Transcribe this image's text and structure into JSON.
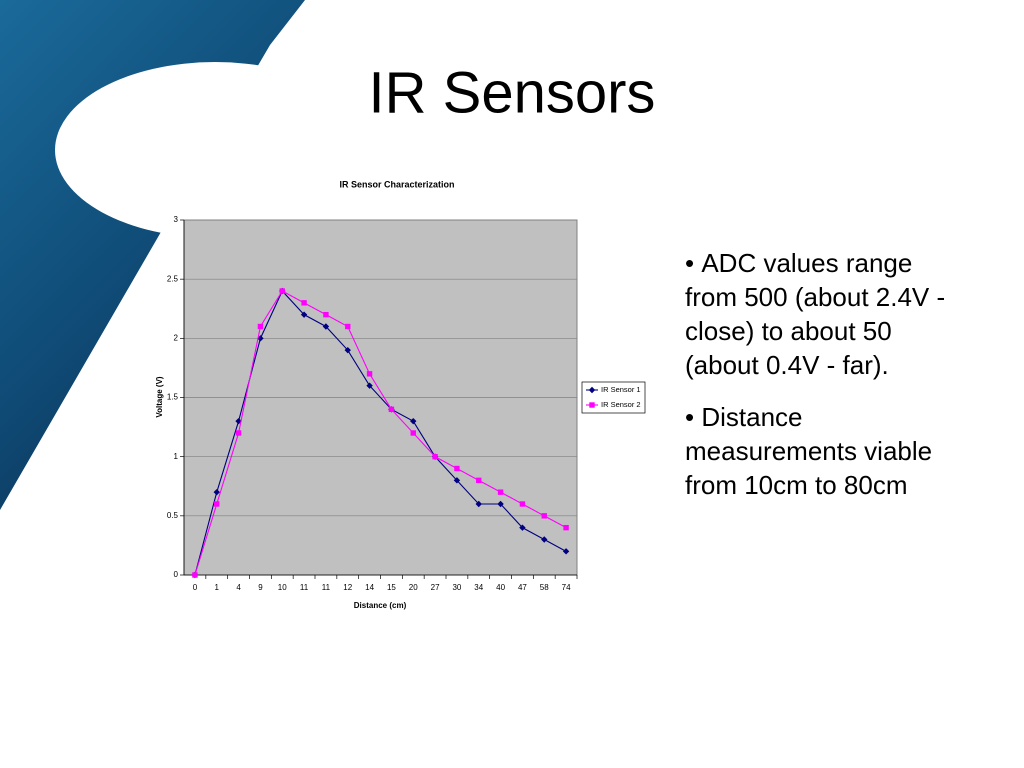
{
  "slide": {
    "title": "IR Sensors",
    "bullets": [
      "ADC values range from 500 (about 2.4V - close) to about 50 (about 0.4V - far).",
      "Distance measurements viable from 10cm to 80cm"
    ]
  },
  "chart_data": {
    "type": "line",
    "title": "IR Sensor Characterization",
    "x_label": "Distance (cm)",
    "y_label": "Voltage (V)",
    "categories": [
      "0",
      "1",
      "4",
      "9",
      "10",
      "11",
      "11",
      "12",
      "14",
      "15",
      "20",
      "27",
      "30",
      "34",
      "40",
      "47",
      "58",
      "74"
    ],
    "series": [
      {
        "name": "IR Sensor 1",
        "color": "#000080",
        "marker": "diamond",
        "values": [
          0,
          0.7,
          1.3,
          2.0,
          2.4,
          2.2,
          2.1,
          1.9,
          1.6,
          1.4,
          1.3,
          1.0,
          0.8,
          0.6,
          0.6,
          0.4,
          0.3,
          0.2
        ]
      },
      {
        "name": "IR Sensor 2",
        "color": "#ff00ff",
        "marker": "square",
        "values": [
          0,
          0.6,
          1.2,
          2.1,
          2.4,
          2.3,
          2.2,
          2.1,
          1.7,
          1.4,
          1.2,
          1.0,
          0.9,
          0.8,
          0.7,
          0.6,
          0.5,
          0.4
        ]
      }
    ],
    "ylim": [
      0,
      3
    ],
    "yticks": [
      0,
      0.5,
      1,
      1.5,
      2,
      2.5,
      3
    ],
    "grid": true,
    "legend": "right"
  }
}
